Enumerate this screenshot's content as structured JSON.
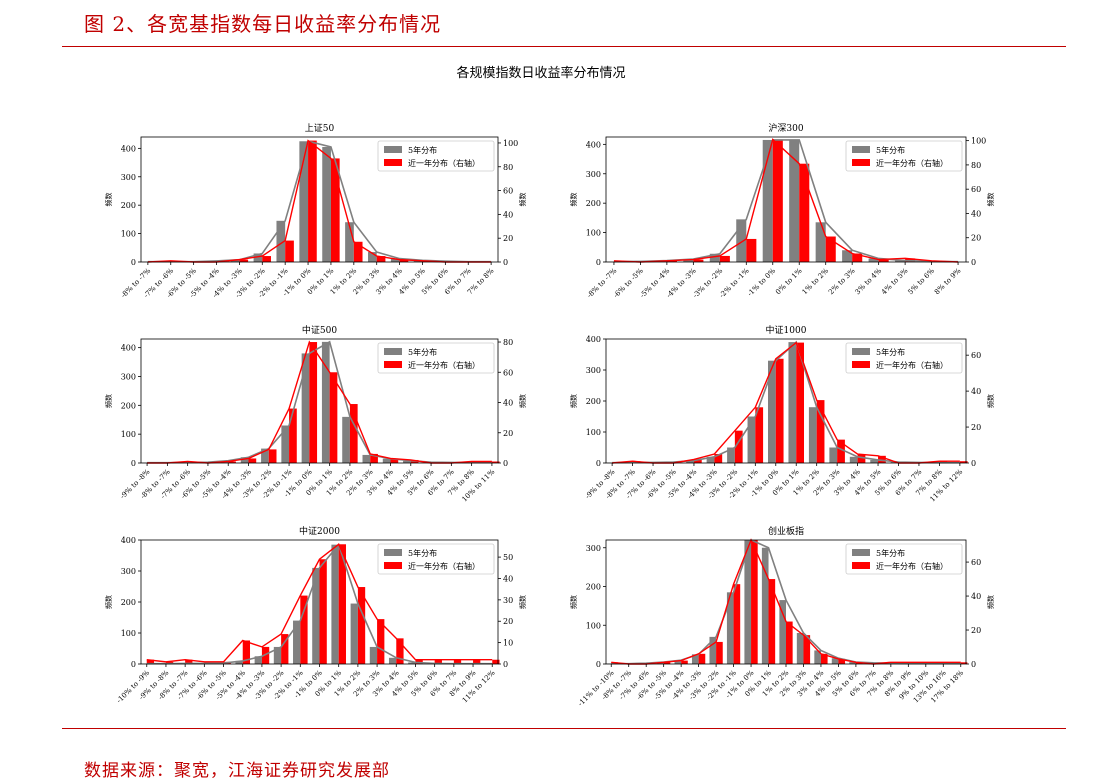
{
  "figure_title": "图 2、各宽基指数每日收益率分布情况",
  "source": "数据来源：聚宽，江海证券研究发展部",
  "chart_data": {
    "suptitle": "各规模指数日收益率分布情况",
    "legend_labels": [
      "5年分布",
      "近一年分布（右轴）"
    ],
    "left_axis_label": "频数",
    "right_axis_label": "频数",
    "colors": {
      "five_year": "#808080",
      "one_year": "#ff0000",
      "frame": "#000000"
    },
    "charts": [
      {
        "type": "bar",
        "title": "上证50",
        "legend": "top-right",
        "categories": [
          "-8% to -7%",
          "-7% to -6%",
          "-6% to -5%",
          "-5% to -4%",
          "-4% to -3%",
          "-3% to -2%",
          "-2% to -1%",
          "-1% to 0%",
          "0% to 1%",
          "1% to 2%",
          "2% to 3%",
          "3% to 4%",
          "4% to 5%",
          "5% to 6%",
          "6% to 7%",
          "7% to 8%"
        ],
        "series": [
          {
            "name": "5年分布",
            "axis": "left",
            "values": [
              1,
              1,
              1,
              4,
              8,
              30,
              145,
              425,
              405,
              140,
              35,
              12,
              6,
              3,
              1,
              1
            ]
          },
          {
            "name": "近一年分布（右轴）",
            "axis": "right",
            "values": [
              0,
              1,
              0,
              0,
              2,
              5,
              18,
              102,
              87,
              17,
              5,
              2,
              1,
              0,
              0,
              0
            ]
          }
        ],
        "ylim_left": [
          0,
          440
        ],
        "yticks_left": [
          0,
          100,
          200,
          300,
          400
        ],
        "ylim_right": [
          0,
          105
        ],
        "yticks_right": [
          0,
          20,
          40,
          60,
          80,
          100
        ]
      },
      {
        "type": "bar",
        "title": "沪深300",
        "legend": "top-right",
        "categories": [
          "-8% to -7%",
          "-6% to -5%",
          "-5% to -4%",
          "-4% to -3%",
          "-3% to -2%",
          "-2% to -1%",
          "-1% to 0%",
          "0% to 1%",
          "1% to 2%",
          "2% to 3%",
          "3% to 4%",
          "4% to 5%",
          "5% to 6%",
          "8% to 9%"
        ],
        "series": [
          {
            "name": "5年分布",
            "axis": "left",
            "values": [
              1,
              2,
              5,
              10,
              28,
              145,
              415,
              415,
              135,
              40,
              12,
              5,
              2,
              1
            ]
          },
          {
            "name": "近一年分布（右轴）",
            "axis": "right",
            "values": [
              1,
              0,
              1,
              2,
              5,
              19,
              101,
              81,
              21,
              7,
              2,
              3,
              1,
              0
            ]
          }
        ],
        "ylim_left": [
          0,
          425
        ],
        "yticks_left": [
          0,
          100,
          200,
          300,
          400
        ],
        "ylim_right": [
          0,
          103
        ],
        "yticks_right": [
          0,
          20,
          40,
          60,
          80,
          100
        ]
      },
      {
        "type": "bar",
        "title": "中证500",
        "legend": "top-right",
        "categories": [
          "-9% to -8%",
          "-8% to -7%",
          "-7% to -6%",
          "-6% to -5%",
          "-5% to -4%",
          "-4% to -3%",
          "-3% to -2%",
          "-2% to -1%",
          "-1% to 0%",
          "0% to 1%",
          "1% to 2%",
          "2% to 3%",
          "3% to 4%",
          "4% to 5%",
          "5% to 6%",
          "6% to 7%",
          "7% to 8%",
          "10% to 11%"
        ],
        "series": [
          {
            "name": "5年分布",
            "axis": "left",
            "values": [
              1,
              1,
              2,
              3,
              8,
              20,
              50,
              130,
              380,
              420,
              160,
              28,
              15,
              8,
              3,
              2,
              1,
              1
            ]
          },
          {
            "name": "近一年分布（右轴）",
            "axis": "right",
            "values": [
              0,
              0,
              1,
              0,
              1,
              3,
              9,
              36,
              80,
              60,
              39,
              6,
              3,
              2,
              0,
              0,
              1,
              1
            ]
          }
        ],
        "ylim_left": [
          0,
          430
        ],
        "yticks_left": [
          0,
          100,
          200,
          300,
          400
        ],
        "ylim_right": [
          0,
          82
        ],
        "yticks_right": [
          0,
          20,
          40,
          60,
          80
        ]
      },
      {
        "type": "bar",
        "title": "中证1000",
        "legend": "top-right",
        "categories": [
          "-9% to -8%",
          "-8% to -7%",
          "-7% to -6%",
          "-6% to -5%",
          "-5% to -4%",
          "-4% to -3%",
          "-3% to -2%",
          "-2% to -1%",
          "-1% to 0%",
          "0% to 1%",
          "1% to 2%",
          "2% to 3%",
          "3% to 4%",
          "4% to 5%",
          "5% to 6%",
          "6% to 7%",
          "7% to 8%",
          "11% to 12%"
        ],
        "series": [
          {
            "name": "5年分布",
            "axis": "left",
            "values": [
              1,
              2,
              2,
              3,
              8,
              20,
              50,
              150,
              330,
              390,
              180,
              50,
              20,
              10,
              3,
              2,
              1,
              1
            ]
          },
          {
            "name": "近一年分布（右轴）",
            "axis": "right",
            "values": [
              0,
              1,
              0,
              0,
              2,
              5,
              18,
              31,
              58,
              67,
              35,
              13,
              5,
              4,
              0,
              0,
              1,
              1
            ]
          }
        ],
        "ylim_left": [
          0,
          400
        ],
        "yticks_left": [
          0,
          100,
          200,
          300,
          400
        ],
        "ylim_right": [
          0,
          69
        ],
        "yticks_right": [
          0,
          20,
          40,
          60
        ]
      },
      {
        "type": "bar",
        "title": "中证2000",
        "legend": "top-right",
        "categories": [
          "-10% to -9%",
          "-9% to -8%",
          "-8% to -7%",
          "-7% to -6%",
          "-6% to -5%",
          "-5% to -4%",
          "-4% to -3%",
          "-3% to -2%",
          "-2% to -1%",
          "-1% to 0%",
          "0% to 1%",
          "1% to 2%",
          "2% to 3%",
          "3% to 4%",
          "4% to 5%",
          "5% to 6%",
          "6% to 7%",
          "8% to 9%",
          "11% to 12%"
        ],
        "series": [
          {
            "name": "5年分布",
            "axis": "left",
            "values": [
              1,
              1,
              2,
              2,
              3,
              10,
              25,
              55,
              140,
              310,
              385,
              195,
              55,
              20,
              5,
              2,
              1,
              1,
              1
            ]
          },
          {
            "name": "近一年分布（右轴）",
            "axis": "right",
            "values": [
              2,
              1,
              2,
              1,
              1,
              11,
              8,
              14,
              32,
              49,
              56,
              36,
              21,
              12,
              2,
              2,
              2,
              2,
              2
            ]
          }
        ],
        "ylim_left": [
          0,
          400
        ],
        "yticks_left": [
          0,
          100,
          200,
          300,
          400
        ],
        "ylim_right": [
          0,
          58
        ],
        "yticks_right": [
          0,
          10,
          20,
          30,
          40,
          50
        ]
      },
      {
        "type": "bar",
        "title": "创业板指",
        "legend": "top-right",
        "categories": [
          "-11% to -10%",
          "-8% to -7%",
          "-7% to -6%",
          "-6% to -5%",
          "-5% to -4%",
          "-4% to -3%",
          "-3% to -2%",
          "-2% to -1%",
          "-1% to 0%",
          "0% to 1%",
          "1% to 2%",
          "2% to 3%",
          "3% to 4%",
          "4% to 5%",
          "5% to 6%",
          "6% to 7%",
          "7% to 8%",
          "8% to 9%",
          "9% to 10%",
          "13% to 16%",
          "17% to 18%"
        ],
        "series": [
          {
            "name": "5年分布",
            "axis": "left",
            "values": [
              1,
              1,
              2,
              5,
              10,
              25,
              70,
              185,
              320,
              300,
              165,
              80,
              35,
              15,
              5,
              3,
              2,
              1,
              1,
              1,
              1
            ]
          },
          {
            "name": "近一年分布（右轴）",
            "axis": "right",
            "values": [
              1,
              0,
              0,
              1,
              2,
              6,
              13,
              47,
              73,
              50,
              25,
              17,
              6,
              3,
              1,
              0,
              1,
              1,
              1,
              1,
              1
            ]
          }
        ],
        "ylim_left": [
          0,
          320
        ],
        "yticks_left": [
          0,
          100,
          200,
          300
        ],
        "ylim_right": [
          0,
          73
        ],
        "yticks_right": [
          0,
          20,
          40,
          60
        ]
      }
    ]
  }
}
